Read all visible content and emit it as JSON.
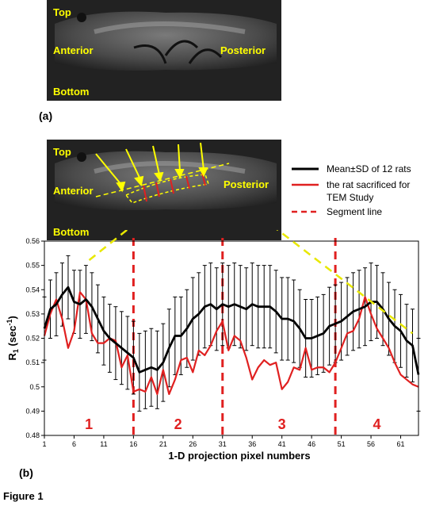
{
  "panel_a": {
    "tag": "(a)",
    "labels": {
      "top": "Top",
      "anterior": "Anterior",
      "posterior": "Posterior",
      "bottom": "Bottom"
    }
  },
  "panel_b": {
    "tag": "(b)",
    "labels": {
      "top": "Top",
      "anterior": "Anterior",
      "posterior": "Posterior",
      "bottom": "Bottom"
    },
    "legend": {
      "mean": "Mean±SD of 12 rats",
      "rat_line1": "the rat sacrificed for",
      "rat_line2": "TEM Study",
      "segment": "Segment line"
    }
  },
  "figure_caption": "Figure 1",
  "colors": {
    "mean": "#000000",
    "rat": "#e02020",
    "segment": "#e02020",
    "yellow": "#ffff00",
    "dash_yellow": "#e8e800"
  },
  "chart_data": {
    "type": "line",
    "xlabel": "1-D projection pixel numbers",
    "ylabel_main": "R",
    "ylabel_sub": "1",
    "ylabel_rest": " (sec",
    "ylabel_sup": "-1",
    "ylabel_end": ")",
    "xlim": [
      1,
      64
    ],
    "ylim": [
      0.48,
      0.56
    ],
    "xticks": [
      1,
      6,
      11,
      16,
      21,
      26,
      31,
      36,
      41,
      46,
      51,
      56,
      61
    ],
    "yticks": [
      "0.48",
      "0.49",
      "0.5",
      "0.51",
      "0.52",
      "0.53",
      "0.54",
      "0.55",
      "0.56"
    ],
    "segment_lines": [
      16,
      31,
      50
    ],
    "segment_labels": [
      {
        "text": "1",
        "x": 8.5
      },
      {
        "text": "2",
        "x": 23.5
      },
      {
        "text": "3",
        "x": 41
      },
      {
        "text": "4",
        "x": 57
      }
    ],
    "series": [
      {
        "name": "Mean±SD of 12 rats",
        "x": [
          1,
          2,
          3,
          4,
          5,
          6,
          7,
          8,
          9,
          10,
          11,
          12,
          13,
          14,
          15,
          16,
          17,
          18,
          19,
          20,
          21,
          22,
          23,
          24,
          25,
          26,
          27,
          28,
          29,
          30,
          31,
          32,
          33,
          34,
          35,
          36,
          37,
          38,
          39,
          40,
          41,
          42,
          43,
          44,
          45,
          46,
          47,
          48,
          49,
          50,
          51,
          52,
          53,
          54,
          55,
          56,
          57,
          58,
          59,
          60,
          61,
          62,
          63,
          64
        ],
        "y": [
          0.524,
          0.532,
          0.534,
          0.538,
          0.541,
          0.535,
          0.534,
          0.536,
          0.533,
          0.528,
          0.523,
          0.52,
          0.518,
          0.516,
          0.514,
          0.512,
          0.506,
          0.507,
          0.508,
          0.507,
          0.51,
          0.516,
          0.521,
          0.521,
          0.524,
          0.528,
          0.53,
          0.533,
          0.534,
          0.532,
          0.534,
          0.533,
          0.534,
          0.533,
          0.532,
          0.534,
          0.533,
          0.533,
          0.533,
          0.531,
          0.528,
          0.528,
          0.527,
          0.524,
          0.52,
          0.52,
          0.521,
          0.522,
          0.525,
          0.526,
          0.527,
          0.529,
          0.531,
          0.532,
          0.533,
          0.535,
          0.535,
          0.532,
          0.528,
          0.525,
          0.523,
          0.519,
          0.517,
          0.505
        ],
        "err": [
          0.013,
          0.012,
          0.013,
          0.013,
          0.013,
          0.013,
          0.014,
          0.014,
          0.014,
          0.014,
          0.014,
          0.014,
          0.015,
          0.015,
          0.015,
          0.015,
          0.016,
          0.016,
          0.016,
          0.016,
          0.016,
          0.016,
          0.016,
          0.016,
          0.016,
          0.017,
          0.017,
          0.017,
          0.017,
          0.017,
          0.017,
          0.017,
          0.017,
          0.017,
          0.017,
          0.017,
          0.017,
          0.017,
          0.017,
          0.017,
          0.017,
          0.017,
          0.017,
          0.016,
          0.016,
          0.016,
          0.016,
          0.016,
          0.016,
          0.016,
          0.016,
          0.016,
          0.016,
          0.016,
          0.016,
          0.016,
          0.015,
          0.015,
          0.015,
          0.015,
          0.015,
          0.015,
          0.015,
          0.015
        ]
      },
      {
        "name": "the rat sacrificed for TEM Study",
        "x": [
          1,
          2,
          3,
          4,
          5,
          6,
          7,
          8,
          9,
          10,
          11,
          12,
          13,
          14,
          15,
          16,
          17,
          18,
          19,
          20,
          21,
          22,
          23,
          24,
          25,
          26,
          27,
          28,
          29,
          30,
          31,
          32,
          33,
          34,
          35,
          36,
          37,
          38,
          39,
          40,
          41,
          42,
          43,
          44,
          45,
          46,
          47,
          48,
          49,
          50,
          51,
          52,
          53,
          54,
          55,
          56,
          57,
          58,
          59,
          60,
          61,
          62,
          63,
          64
        ],
        "y": [
          0.521,
          0.53,
          0.536,
          0.528,
          0.516,
          0.523,
          0.539,
          0.536,
          0.522,
          0.518,
          0.518,
          0.52,
          0.519,
          0.508,
          0.513,
          0.498,
          0.499,
          0.498,
          0.504,
          0.497,
          0.507,
          0.497,
          0.503,
          0.511,
          0.512,
          0.506,
          0.515,
          0.513,
          0.517,
          0.523,
          0.527,
          0.515,
          0.521,
          0.519,
          0.512,
          0.503,
          0.508,
          0.511,
          0.509,
          0.51,
          0.499,
          0.502,
          0.508,
          0.507,
          0.516,
          0.507,
          0.508,
          0.508,
          0.506,
          0.51,
          0.516,
          0.522,
          0.523,
          0.528,
          0.537,
          0.53,
          0.524,
          0.52,
          0.516,
          0.51,
          0.505,
          0.503,
          0.501,
          0.5
        ]
      }
    ]
  }
}
